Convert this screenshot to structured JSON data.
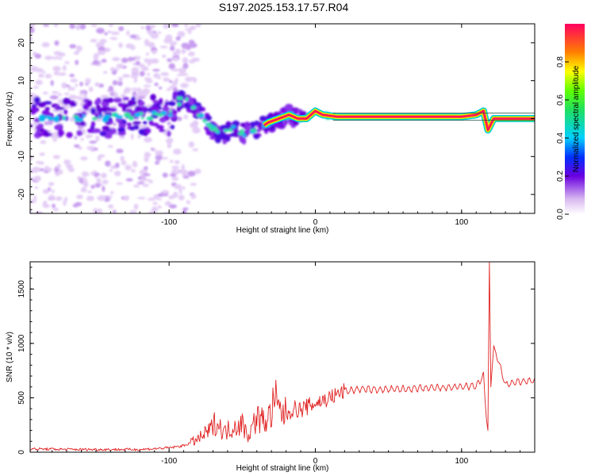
{
  "title": "S197.2025.153.17.57.R04",
  "chart_data": [
    {
      "type": "heatmap",
      "xlabel": "Height of straight line (km)",
      "ylabel": "Frequency (Hz)",
      "xlim": [
        -195,
        150
      ],
      "ylim": [
        -25,
        25
      ],
      "xticks": [
        -100,
        0,
        100
      ],
      "yticks": [
        -20,
        -10,
        0,
        10,
        20
      ],
      "colorbar": {
        "label": "Normalized spectral amplitude",
        "range": [
          0,
          1
        ],
        "ticks": [
          0.0,
          0.2,
          0.4,
          0.6,
          0.8
        ]
      },
      "ridge": [
        {
          "x": -190,
          "y": 0
        },
        {
          "x": -150,
          "y": 0
        },
        {
          "x": -100,
          "y": 1
        },
        {
          "x": -92,
          "y": 5
        },
        {
          "x": -85,
          "y": 4
        },
        {
          "x": -78,
          "y": 1
        },
        {
          "x": -70,
          "y": -3
        },
        {
          "x": -62,
          "y": -4
        },
        {
          "x": -55,
          "y": -2
        },
        {
          "x": -48,
          "y": -4
        },
        {
          "x": -42,
          "y": -3
        },
        {
          "x": -36,
          "y": -2
        },
        {
          "x": -32,
          "y": -1
        },
        {
          "x": -25,
          "y": 0
        },
        {
          "x": -18,
          "y": 1
        },
        {
          "x": -12,
          "y": 0
        },
        {
          "x": -6,
          "y": 0
        },
        {
          "x": 0,
          "y": 2
        },
        {
          "x": 5,
          "y": 1
        },
        {
          "x": 15,
          "y": 0.5
        },
        {
          "x": 50,
          "y": 0.5
        },
        {
          "x": 100,
          "y": 0.5
        },
        {
          "x": 110,
          "y": 1
        },
        {
          "x": 115,
          "y": 2
        },
        {
          "x": 118,
          "y": -3
        },
        {
          "x": 122,
          "y": 0
        },
        {
          "x": 150,
          "y": 0
        }
      ]
    },
    {
      "type": "line",
      "xlabel": "Height of straight line (km)",
      "ylabel": "SNR (10 * v/v)",
      "xlim": [
        -195,
        150
      ],
      "ylim": [
        0,
        1750
      ],
      "xticks": [
        -100,
        0,
        100
      ],
      "yticks": [
        0,
        500,
        1000,
        1500
      ],
      "color": "#e02020",
      "series": [
        {
          "x": [
            -195,
            -160,
            -120,
            -100,
            -90,
            -80,
            -72,
            -68,
            -62,
            -56,
            -50,
            -46,
            -40,
            -35,
            -30,
            -28,
            -25,
            -20,
            -15,
            -10,
            -5,
            0,
            10,
            20,
            30,
            40,
            60,
            80,
            100,
            110,
            115,
            117,
            118,
            119,
            120,
            122,
            130,
            140,
            150
          ],
          "y": [
            30,
            25,
            25,
            40,
            60,
            120,
            200,
            280,
            180,
            240,
            260,
            150,
            320,
            280,
            350,
            500,
            380,
            350,
            400,
            390,
            420,
            450,
            500,
            560,
            580,
            575,
            580,
            590,
            600,
            610,
            700,
            300,
            200,
            1750,
            600,
            980,
            620,
            650,
            660
          ]
        }
      ]
    }
  ]
}
